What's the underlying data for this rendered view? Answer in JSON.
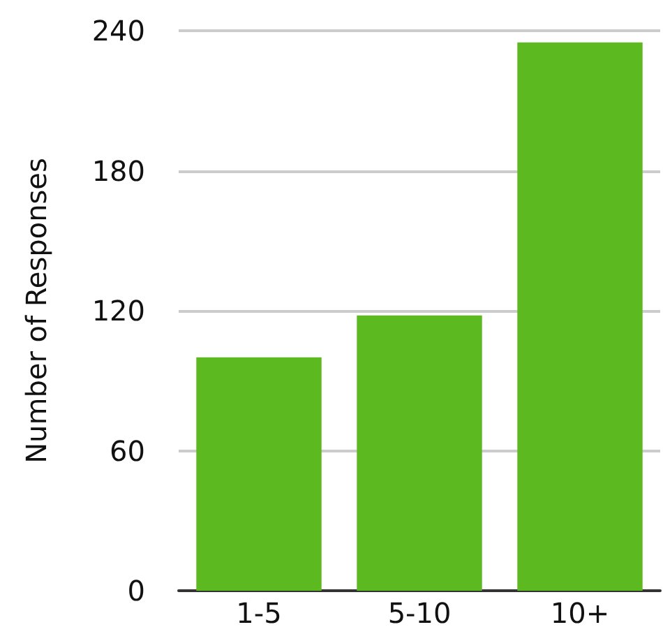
{
  "chart_data": {
    "type": "bar",
    "ylabel": "Number of Responses",
    "categories": [
      "1-5",
      "5-10",
      "10+"
    ],
    "values": [
      100,
      118,
      235
    ],
    "color": "#5cb91f",
    "ylim": [
      0,
      240
    ],
    "yticks": [
      0,
      60,
      120,
      180,
      240
    ],
    "grid": "y"
  }
}
